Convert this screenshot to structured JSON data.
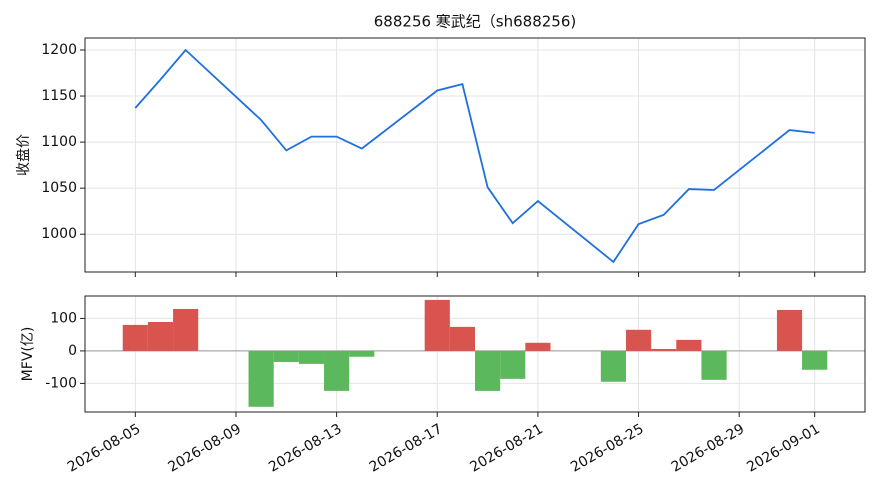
{
  "chart_data": [
    {
      "type": "line",
      "title": "688256 寒武纪（sh688256)",
      "ylabel": "收盘价",
      "color": "#1f6fdf",
      "x": [
        "2026-08-05",
        "2026-08-06",
        "2026-08-07",
        "2026-08-10",
        "2026-08-11",
        "2026-08-12",
        "2026-08-13",
        "2026-08-14",
        "2026-08-17",
        "2026-08-18",
        "2026-08-19",
        "2026-08-20",
        "2026-08-21",
        "2026-08-24",
        "2026-08-25",
        "2026-08-26",
        "2026-08-27",
        "2026-08-28",
        "2026-08-31",
        "2026-09-01"
      ],
      "values": [
        1137,
        1168,
        1200,
        1124,
        1091,
        1106,
        1106,
        1093,
        1156,
        1163,
        1051,
        1012,
        1036,
        970,
        1011,
        1021,
        1049,
        1048,
        1113,
        1110
      ],
      "xlim": [
        "2026-08-03",
        "2026-09-03"
      ],
      "ylim": [
        959,
        1213
      ],
      "yticks": [
        1000,
        1050,
        1100,
        1150,
        1200
      ],
      "grid": true
    },
    {
      "type": "bar",
      "ylabel": "MFV(亿)",
      "positive_color": "#d9534f",
      "negative_color": "#5cb85c",
      "x": [
        "2026-08-05",
        "2026-08-06",
        "2026-08-07",
        "2026-08-10",
        "2026-08-11",
        "2026-08-12",
        "2026-08-13",
        "2026-08-14",
        "2026-08-17",
        "2026-08-18",
        "2026-08-19",
        "2026-08-20",
        "2026-08-21",
        "2026-08-24",
        "2026-08-25",
        "2026-08-26",
        "2026-08-27",
        "2026-08-28",
        "2026-08-31",
        "2026-09-01"
      ],
      "values": [
        80,
        89,
        129,
        -172,
        -34,
        -40,
        -123,
        -18,
        157,
        74,
        -123,
        -86,
        25,
        -95,
        65,
        6,
        34,
        -89,
        126,
        -58
      ],
      "xlim": [
        "2026-08-03",
        "2026-09-03"
      ],
      "ylim": [
        -188,
        169
      ],
      "yticks": [
        -100,
        0,
        100
      ],
      "xticks": [
        "2026-08-05",
        "2026-08-09",
        "2026-08-13",
        "2026-08-17",
        "2026-08-21",
        "2026-08-25",
        "2026-08-29",
        "2026-09-01"
      ],
      "grid": true
    }
  ]
}
